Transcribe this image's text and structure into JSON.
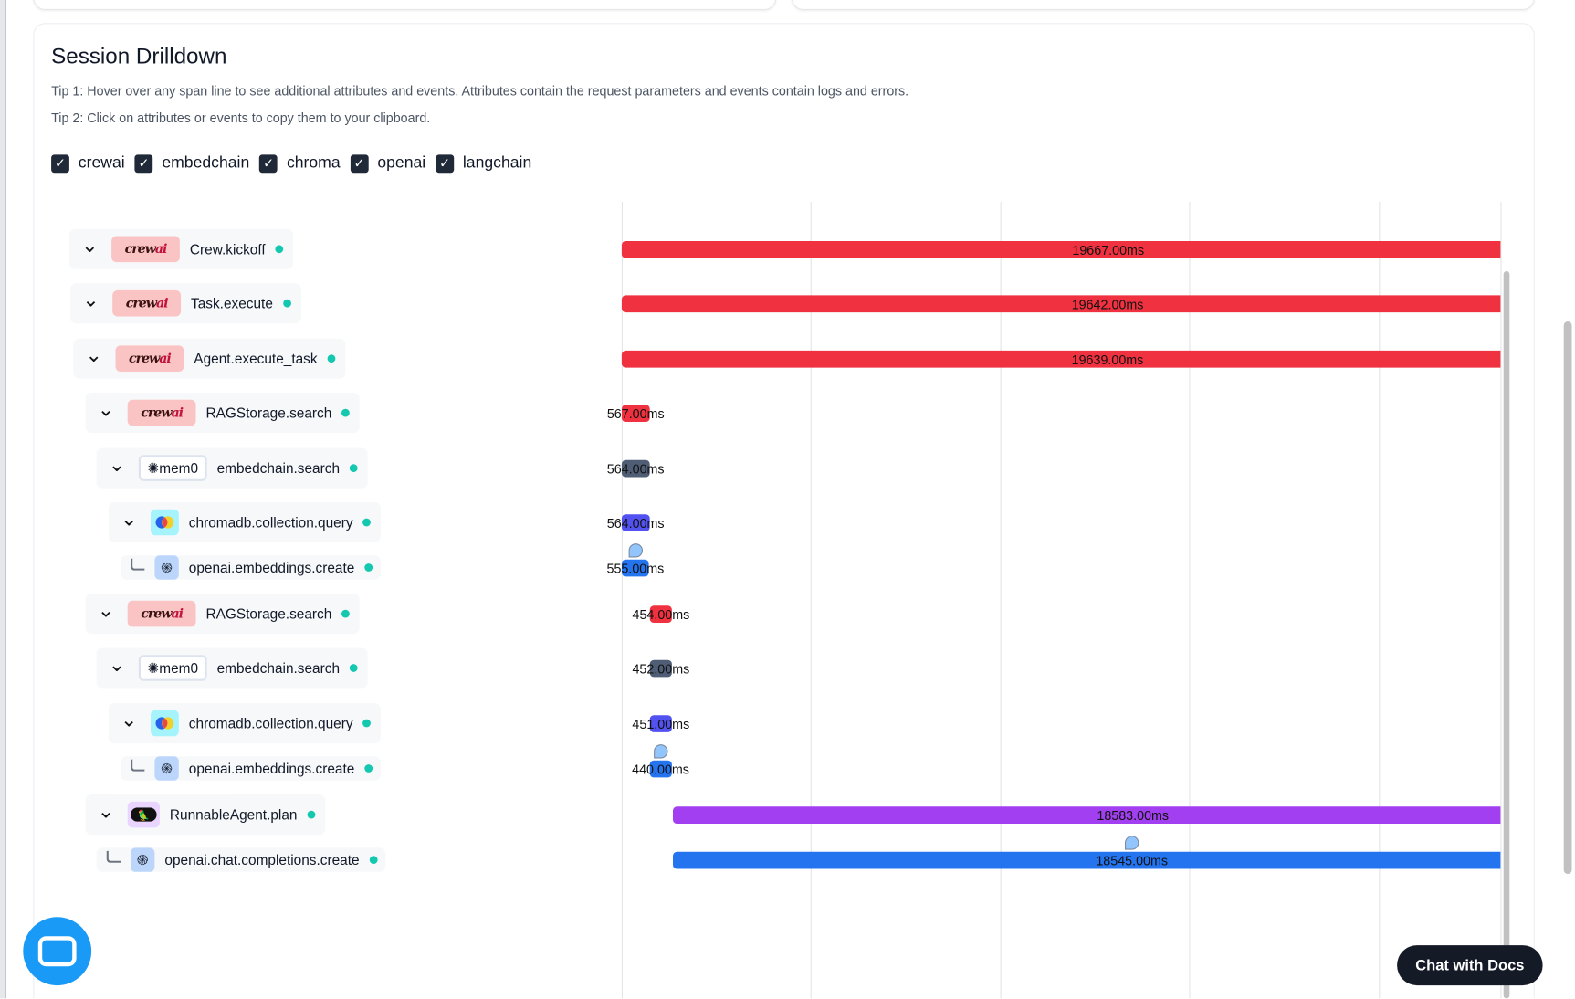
{
  "section": {
    "title": "Session Drilldown",
    "tip1": "Tip 1: Hover over any span line to see additional attributes and events. Attributes contain the request parameters and events contain logs and errors.",
    "tip2": "Tip 2: Click on attributes or events to copy them to your clipboard."
  },
  "filters": [
    {
      "label": "crewai",
      "checked": true
    },
    {
      "label": "embedchain",
      "checked": true
    },
    {
      "label": "chroma",
      "checked": true
    },
    {
      "label": "openai",
      "checked": true
    },
    {
      "label": "langchain",
      "checked": true
    }
  ],
  "colors": {
    "crewai": "#f0313f",
    "embedchain": "#4f5e75",
    "chroma": "#5252f0",
    "openai": "#2474f0",
    "langchain": "#a23ff0",
    "status": "#14c8b0"
  },
  "spans": [
    {
      "name": "Crew.kickoff",
      "logo": "crewai",
      "duration": "19667.00ms",
      "duration_ms": 19667,
      "start_ms": 0,
      "expandable": true,
      "depth": 0
    },
    {
      "name": "Task.execute",
      "logo": "crewai",
      "duration": "19642.00ms",
      "duration_ms": 19642,
      "start_ms": 0,
      "expandable": true,
      "depth": 1
    },
    {
      "name": "Agent.execute_task",
      "logo": "crewai",
      "duration": "19639.00ms",
      "duration_ms": 19639,
      "start_ms": 0,
      "expandable": true,
      "depth": 2
    },
    {
      "name": "RAGStorage.search",
      "logo": "crewai",
      "duration": "567.00ms",
      "duration_ms": 567,
      "start_ms": 0,
      "expandable": true,
      "depth": 3
    },
    {
      "name": "embedchain.search",
      "logo": "mem0",
      "logo_text": "mem0",
      "duration": "564.00ms",
      "duration_ms": 564,
      "start_ms": 0,
      "expandable": true,
      "depth": 4
    },
    {
      "name": "chromadb.collection.query",
      "logo": "chroma",
      "duration": "564.00ms",
      "duration_ms": 564,
      "start_ms": 0,
      "expandable": true,
      "depth": 5
    },
    {
      "name": "openai.embeddings.create",
      "logo": "openai",
      "duration": "555.00ms",
      "duration_ms": 555,
      "start_ms": 0,
      "expandable": false,
      "event": true,
      "depth": 6
    },
    {
      "name": "RAGStorage.search",
      "logo": "crewai",
      "duration": "454.00ms",
      "duration_ms": 454,
      "start_ms": 567,
      "expandable": true,
      "depth": 3
    },
    {
      "name": "embedchain.search",
      "logo": "mem0",
      "logo_text": "mem0",
      "duration": "452.00ms",
      "duration_ms": 452,
      "start_ms": 567,
      "expandable": true,
      "depth": 4
    },
    {
      "name": "chromadb.collection.query",
      "logo": "chroma",
      "duration": "451.00ms",
      "duration_ms": 451,
      "start_ms": 567,
      "expandable": true,
      "depth": 5
    },
    {
      "name": "openai.embeddings.create",
      "logo": "openai",
      "duration": "440.00ms",
      "duration_ms": 440,
      "start_ms": 567,
      "expandable": false,
      "event": true,
      "depth": 6
    },
    {
      "name": "RunnableAgent.plan",
      "logo": "langchain",
      "duration": "18583.00ms",
      "duration_ms": 18583,
      "start_ms": 1040,
      "expandable": true,
      "depth": 3
    },
    {
      "name": "openai.chat.completions.create",
      "logo": "openai",
      "duration": "18545.00ms",
      "duration_ms": 18545,
      "start_ms": 1040,
      "expandable": false,
      "event": true,
      "depth": 4
    }
  ],
  "chat_docs_label": "Chat with Docs"
}
